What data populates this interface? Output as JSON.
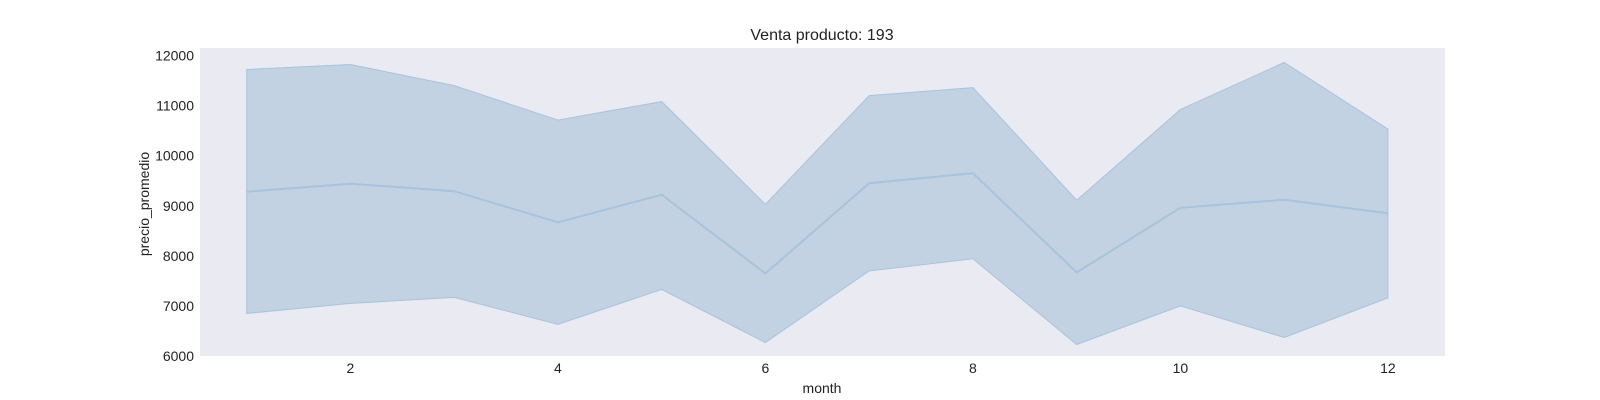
{
  "chart_data": {
    "type": "line",
    "title": "Venta producto: 193",
    "xlabel": "month",
    "ylabel": "precio_promedio",
    "x": [
      1,
      2,
      3,
      4,
      5,
      6,
      7,
      8,
      9,
      10,
      11,
      12
    ],
    "series": [
      {
        "values": [
          9280,
          9440,
          9290,
          8670,
          9220,
          7650,
          9450,
          9650,
          7670,
          8960,
          9120,
          8850
        ],
        "ci_upper": [
          11720,
          11820,
          11400,
          10710,
          11080,
          9030,
          11200,
          11360,
          9110,
          10920,
          11860,
          10530
        ],
        "ci_lower": [
          6850,
          7050,
          7170,
          6630,
          7330,
          6270,
          7700,
          7940,
          6230,
          7000,
          6370,
          7160
        ]
      }
    ],
    "xlim": [
      0.55,
      12.55
    ],
    "ylim": [
      6000,
      12150
    ],
    "xticks": [
      2,
      4,
      6,
      8,
      10,
      12
    ],
    "yticks": [
      6000,
      7000,
      8000,
      9000,
      10000,
      11000,
      12000
    ],
    "grid": false,
    "colors": {
      "plot_background": "#eaeaf2",
      "line": "#a8c3dc",
      "band_fill": "#c2d2e3",
      "band_edge": "#a8c3dc",
      "text": "#222222"
    }
  }
}
